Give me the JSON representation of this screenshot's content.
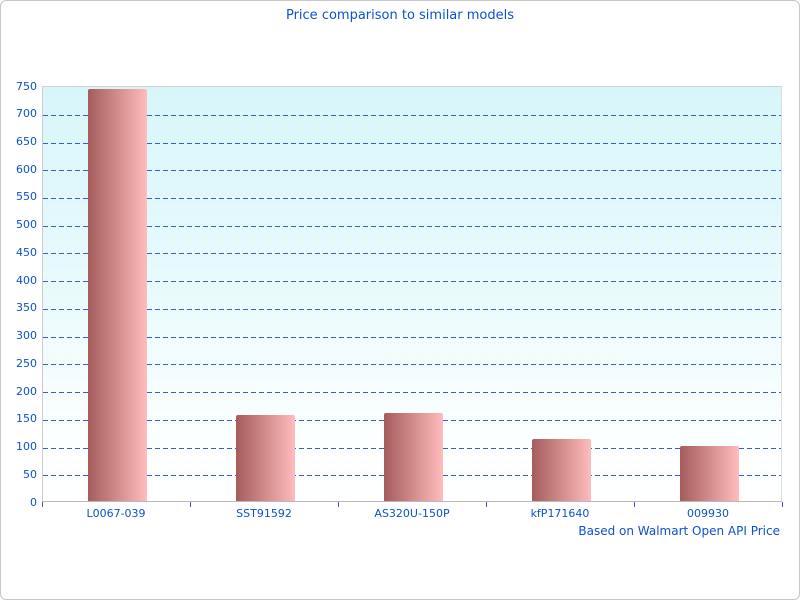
{
  "chart_data": {
    "type": "bar",
    "title": "Price comparison to similar models",
    "categories": [
      "L0067-039",
      "SST91592",
      "AS320U-150P",
      "kfP171640",
      "009930"
    ],
    "values": [
      742,
      156,
      159,
      111,
      100
    ],
    "ylim": [
      0,
      750
    ],
    "ytick_step": 50,
    "xlabel": "",
    "ylabel": "",
    "grid": "horizontal-dashed",
    "legend_position": "none",
    "footer_note": "Based on Walmart Open API Price",
    "colors": {
      "title_text": "#0d51d0",
      "axis_text": "#0d51d0",
      "gridline": "#3a5ccc",
      "bar_gradient_left": "#a55c5c",
      "bar_gradient_right": "#ffbcbc",
      "plot_bg_top": "#d8f6fa",
      "plot_bg_bottom": "#ffffff",
      "axis_line": "#c8c8c8"
    }
  }
}
